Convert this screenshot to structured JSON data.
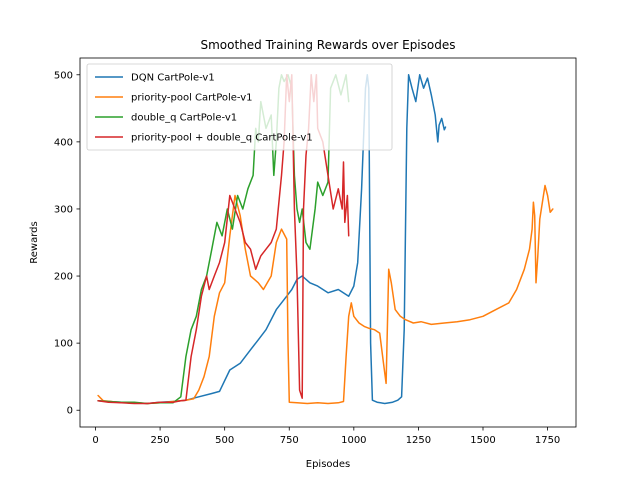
{
  "chart_data": {
    "type": "line",
    "title": "Smoothed Training Rewards over Episodes",
    "xlabel": "Episodes",
    "ylabel": "Rewards",
    "xlim": [
      -60,
      1860
    ],
    "ylim": [
      -25,
      525
    ],
    "xticks": [
      0,
      250,
      500,
      750,
      1000,
      1250,
      1500,
      1750
    ],
    "yticks": [
      0,
      100,
      200,
      300,
      400,
      500
    ],
    "grid": false,
    "legend_position": "upper-left",
    "series": [
      {
        "name": "DQN CartPole-v1",
        "color": "#1f77b4",
        "points": [
          [
            10,
            14
          ],
          [
            50,
            13
          ],
          [
            100,
            12
          ],
          [
            150,
            11
          ],
          [
            200,
            10
          ],
          [
            250,
            12
          ],
          [
            300,
            13
          ],
          [
            350,
            15
          ],
          [
            400,
            20
          ],
          [
            450,
            25
          ],
          [
            480,
            28
          ],
          [
            520,
            60
          ],
          [
            560,
            70
          ],
          [
            600,
            90
          ],
          [
            630,
            105
          ],
          [
            660,
            120
          ],
          [
            700,
            150
          ],
          [
            740,
            170
          ],
          [
            760,
            180
          ],
          [
            780,
            195
          ],
          [
            800,
            200
          ],
          [
            830,
            190
          ],
          [
            860,
            185
          ],
          [
            900,
            175
          ],
          [
            940,
            180
          ],
          [
            980,
            170
          ],
          [
            1000,
            185
          ],
          [
            1015,
            220
          ],
          [
            1030,
            330
          ],
          [
            1045,
            480
          ],
          [
            1052,
            500
          ],
          [
            1058,
            480
          ],
          [
            1065,
            100
          ],
          [
            1072,
            15
          ],
          [
            1090,
            12
          ],
          [
            1120,
            10
          ],
          [
            1150,
            12
          ],
          [
            1170,
            15
          ],
          [
            1185,
            20
          ],
          [
            1195,
            120
          ],
          [
            1205,
            420
          ],
          [
            1212,
            500
          ],
          [
            1225,
            480
          ],
          [
            1240,
            460
          ],
          [
            1255,
            500
          ],
          [
            1270,
            480
          ],
          [
            1285,
            495
          ],
          [
            1300,
            470
          ],
          [
            1315,
            440
          ],
          [
            1325,
            400
          ],
          [
            1330,
            425
          ],
          [
            1340,
            435
          ],
          [
            1350,
            418
          ],
          [
            1355,
            422
          ]
        ]
      },
      {
        "name": "priority-pool CartPole-v1",
        "color": "#ff7f0e",
        "points": [
          [
            10,
            22
          ],
          [
            30,
            14
          ],
          [
            60,
            13
          ],
          [
            100,
            11
          ],
          [
            150,
            11
          ],
          [
            200,
            10
          ],
          [
            250,
            11
          ],
          [
            300,
            13
          ],
          [
            350,
            15
          ],
          [
            380,
            17
          ],
          [
            400,
            30
          ],
          [
            420,
            50
          ],
          [
            440,
            80
          ],
          [
            460,
            140
          ],
          [
            480,
            175
          ],
          [
            500,
            190
          ],
          [
            520,
            260
          ],
          [
            540,
            320
          ],
          [
            560,
            290
          ],
          [
            580,
            240
          ],
          [
            600,
            200
          ],
          [
            630,
            190
          ],
          [
            650,
            180
          ],
          [
            680,
            200
          ],
          [
            700,
            250
          ],
          [
            720,
            270
          ],
          [
            740,
            255
          ],
          [
            745,
            100
          ],
          [
            750,
            12
          ],
          [
            780,
            11
          ],
          [
            820,
            10
          ],
          [
            860,
            11
          ],
          [
            900,
            10
          ],
          [
            940,
            11
          ],
          [
            960,
            13
          ],
          [
            970,
            80
          ],
          [
            980,
            140
          ],
          [
            990,
            160
          ],
          [
            1000,
            140
          ],
          [
            1020,
            130
          ],
          [
            1040,
            125
          ],
          [
            1060,
            122
          ],
          [
            1080,
            120
          ],
          [
            1100,
            115
          ],
          [
            1115,
            70
          ],
          [
            1125,
            40
          ],
          [
            1135,
            210
          ],
          [
            1145,
            190
          ],
          [
            1160,
            150
          ],
          [
            1180,
            140
          ],
          [
            1200,
            135
          ],
          [
            1230,
            130
          ],
          [
            1260,
            132
          ],
          [
            1300,
            128
          ],
          [
            1350,
            130
          ],
          [
            1400,
            132
          ],
          [
            1450,
            135
          ],
          [
            1500,
            140
          ],
          [
            1550,
            150
          ],
          [
            1600,
            160
          ],
          [
            1630,
            180
          ],
          [
            1660,
            210
          ],
          [
            1680,
            240
          ],
          [
            1690,
            270
          ],
          [
            1695,
            310
          ],
          [
            1700,
            290
          ],
          [
            1705,
            190
          ],
          [
            1712,
            230
          ],
          [
            1720,
            285
          ],
          [
            1730,
            310
          ],
          [
            1740,
            335
          ],
          [
            1750,
            320
          ],
          [
            1760,
            295
          ],
          [
            1770,
            300
          ]
        ]
      },
      {
        "name": "double_q CartPole-v1",
        "color": "#2ca02c",
        "points": [
          [
            10,
            14
          ],
          [
            50,
            13
          ],
          [
            100,
            12
          ],
          [
            150,
            12
          ],
          [
            200,
            10
          ],
          [
            250,
            11
          ],
          [
            300,
            11
          ],
          [
            330,
            20
          ],
          [
            350,
            80
          ],
          [
            370,
            120
          ],
          [
            390,
            140
          ],
          [
            410,
            180
          ],
          [
            430,
            200
          ],
          [
            450,
            240
          ],
          [
            470,
            280
          ],
          [
            490,
            260
          ],
          [
            510,
            300
          ],
          [
            530,
            270
          ],
          [
            550,
            320
          ],
          [
            570,
            300
          ],
          [
            590,
            330
          ],
          [
            610,
            350
          ],
          [
            620,
            420
          ],
          [
            630,
            400
          ],
          [
            640,
            460
          ],
          [
            660,
            420
          ],
          [
            680,
            440
          ],
          [
            690,
            350
          ],
          [
            700,
            400
          ],
          [
            710,
            480
          ],
          [
            720,
            500
          ],
          [
            730,
            490
          ],
          [
            745,
            500
          ],
          [
            760,
            480
          ],
          [
            770,
            350
          ],
          [
            780,
            300
          ],
          [
            790,
            280
          ],
          [
            800,
            300
          ],
          [
            815,
            250
          ],
          [
            830,
            240
          ],
          [
            850,
            300
          ],
          [
            860,
            340
          ],
          [
            880,
            320
          ],
          [
            900,
            340
          ],
          [
            910,
            480
          ],
          [
            930,
            500
          ],
          [
            950,
            470
          ],
          [
            970,
            500
          ],
          [
            980,
            460
          ]
        ]
      },
      {
        "name": "priority-pool + double_q CartPole-v1",
        "color": "#d62728",
        "points": [
          [
            10,
            14
          ],
          [
            50,
            12
          ],
          [
            100,
            11
          ],
          [
            150,
            10
          ],
          [
            200,
            10
          ],
          [
            250,
            12
          ],
          [
            300,
            12
          ],
          [
            330,
            14
          ],
          [
            350,
            15
          ],
          [
            370,
            80
          ],
          [
            390,
            120
          ],
          [
            410,
            170
          ],
          [
            430,
            200
          ],
          [
            440,
            180
          ],
          [
            460,
            200
          ],
          [
            480,
            220
          ],
          [
            500,
            250
          ],
          [
            520,
            320
          ],
          [
            540,
            300
          ],
          [
            560,
            280
          ],
          [
            580,
            250
          ],
          [
            600,
            240
          ],
          [
            620,
            210
          ],
          [
            640,
            230
          ],
          [
            660,
            240
          ],
          [
            680,
            250
          ],
          [
            700,
            270
          ],
          [
            720,
            350
          ],
          [
            730,
            400
          ],
          [
            740,
            500
          ],
          [
            750,
            460
          ],
          [
            760,
            500
          ],
          [
            770,
            300
          ],
          [
            780,
            200
          ],
          [
            790,
            30
          ],
          [
            800,
            18
          ],
          [
            805,
            300
          ],
          [
            815,
            380
          ],
          [
            825,
            420
          ],
          [
            835,
            500
          ],
          [
            845,
            460
          ],
          [
            855,
            500
          ],
          [
            860,
            420
          ],
          [
            880,
            400
          ],
          [
            900,
            350
          ],
          [
            920,
            300
          ],
          [
            940,
            330
          ],
          [
            955,
            300
          ],
          [
            960,
            370
          ],
          [
            965,
            280
          ],
          [
            970,
            300
          ],
          [
            975,
            320
          ],
          [
            980,
            260
          ]
        ]
      }
    ]
  }
}
